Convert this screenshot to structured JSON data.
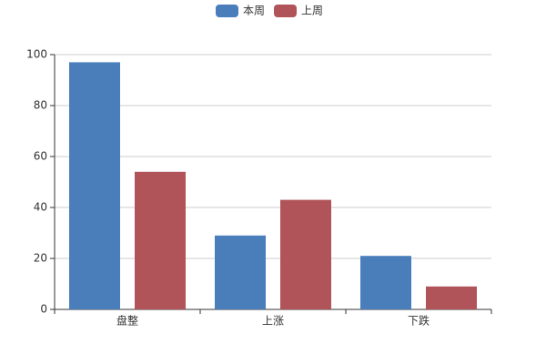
{
  "chart_data": {
    "type": "bar",
    "categories": [
      "盘整",
      "上涨",
      "下跌"
    ],
    "series": [
      {
        "name": "本周",
        "color": "#4a7ebb",
        "values": [
          97,
          29,
          21
        ]
      },
      {
        "name": "上周",
        "color": "#b0545a",
        "values": [
          54,
          43,
          9
        ]
      }
    ],
    "ylim": [
      0,
      100
    ],
    "yticks": [
      0,
      20,
      40,
      60,
      80,
      100
    ],
    "grid": true,
    "legend": "top"
  }
}
